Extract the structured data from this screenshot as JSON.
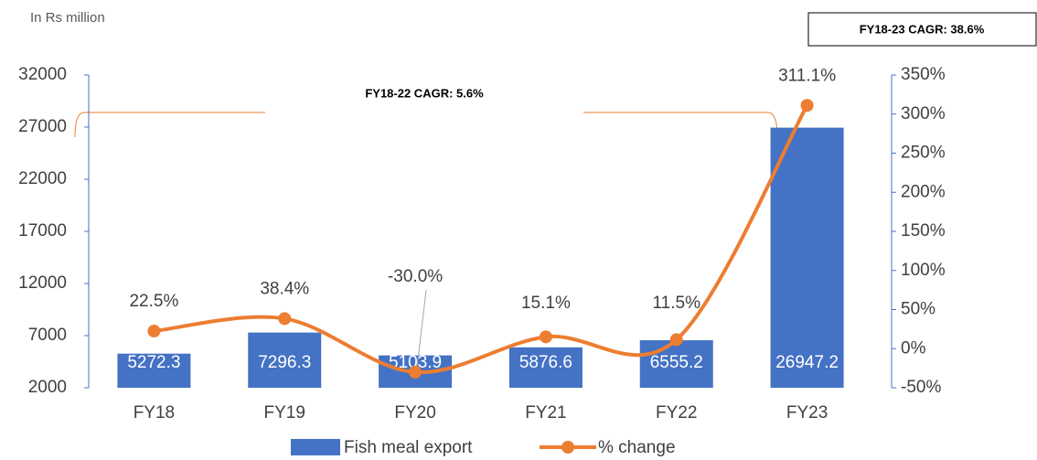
{
  "chart_data": {
    "type": "bar_line",
    "subtitle": "In Rs million",
    "annotations": [
      "FY18-22 CAGR: 5.6%",
      "FY18-23 CAGR: 38.6%"
    ],
    "categories": [
      "FY18",
      "FY19",
      "FY20",
      "FY21",
      "FY22",
      "FY23"
    ],
    "series": [
      {
        "name": "Fish meal export",
        "color": "#4472c4",
        "type": "bar",
        "values": [
          5272.3,
          7296.3,
          5103.9,
          5876.6,
          6555.2,
          26947.2
        ]
      },
      {
        "name": "% change",
        "color": "#ed7d31",
        "type": "line",
        "axis": "y2",
        "values": [
          22.5,
          38.4,
          -30.0,
          15.1,
          11.5,
          311.1
        ],
        "value_labels": [
          "22.5%",
          "38.4%",
          "-30.0%",
          "15.1%",
          "11.5%",
          "311.1%"
        ]
      }
    ],
    "ylim": [
      2000,
      32000
    ],
    "yticks": [
      2000,
      7000,
      12000,
      17000,
      22000,
      27000,
      32000
    ],
    "y2lim": [
      -50,
      350
    ],
    "y2ticks": [
      {
        "value": -50,
        "label": "-50%"
      },
      {
        "value": 0,
        "label": "0%"
      },
      {
        "value": 50,
        "label": "50%"
      },
      {
        "value": 100,
        "label": "100%"
      },
      {
        "value": 150,
        "label": "150%"
      },
      {
        "value": 200,
        "label": "200%"
      },
      {
        "value": 250,
        "label": "250%"
      },
      {
        "value": 300,
        "label": "300%"
      },
      {
        "value": 350,
        "label": "350%"
      }
    ],
    "grid": false
  }
}
